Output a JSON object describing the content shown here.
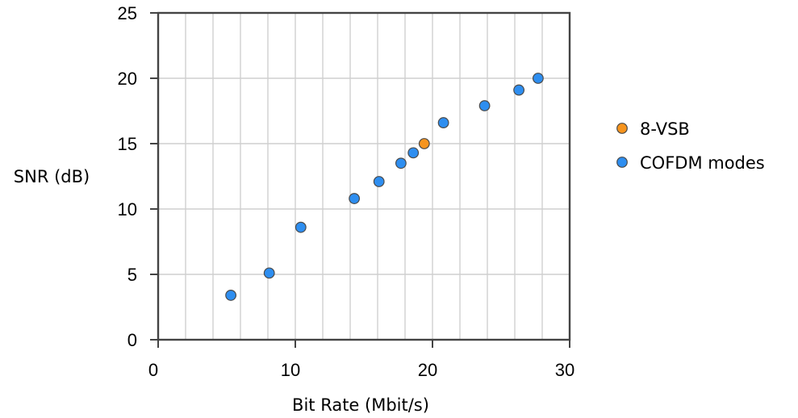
{
  "chart_data": {
    "type": "scatter",
    "xlabel": "Bit Rate (Mbit/s)",
    "ylabel": "SNR (dB)",
    "xlim": [
      0,
      30
    ],
    "ylim": [
      0,
      25
    ],
    "xticks": [
      0,
      10,
      20,
      30
    ],
    "yticks": [
      0,
      5,
      10,
      15,
      20,
      25
    ],
    "x_minor_grid_step": 2,
    "y_grid_step": 5,
    "grid": true,
    "legend_position": "right",
    "series": [
      {
        "name": "8-VSB",
        "color": "#f7941d",
        "points": [
          {
            "x": 19.4,
            "y": 15.0
          }
        ]
      },
      {
        "name": "COFDM modes",
        "color": "#2e8ef0",
        "points": [
          {
            "x": 5.3,
            "y": 3.4
          },
          {
            "x": 8.1,
            "y": 5.1
          },
          {
            "x": 10.4,
            "y": 8.6
          },
          {
            "x": 14.3,
            "y": 10.8
          },
          {
            "x": 16.1,
            "y": 12.1
          },
          {
            "x": 17.7,
            "y": 13.5
          },
          {
            "x": 18.6,
            "y": 14.3
          },
          {
            "x": 20.8,
            "y": 16.6
          },
          {
            "x": 23.8,
            "y": 17.9
          },
          {
            "x": 26.3,
            "y": 19.1
          },
          {
            "x": 27.7,
            "y": 20.0
          }
        ]
      }
    ]
  }
}
